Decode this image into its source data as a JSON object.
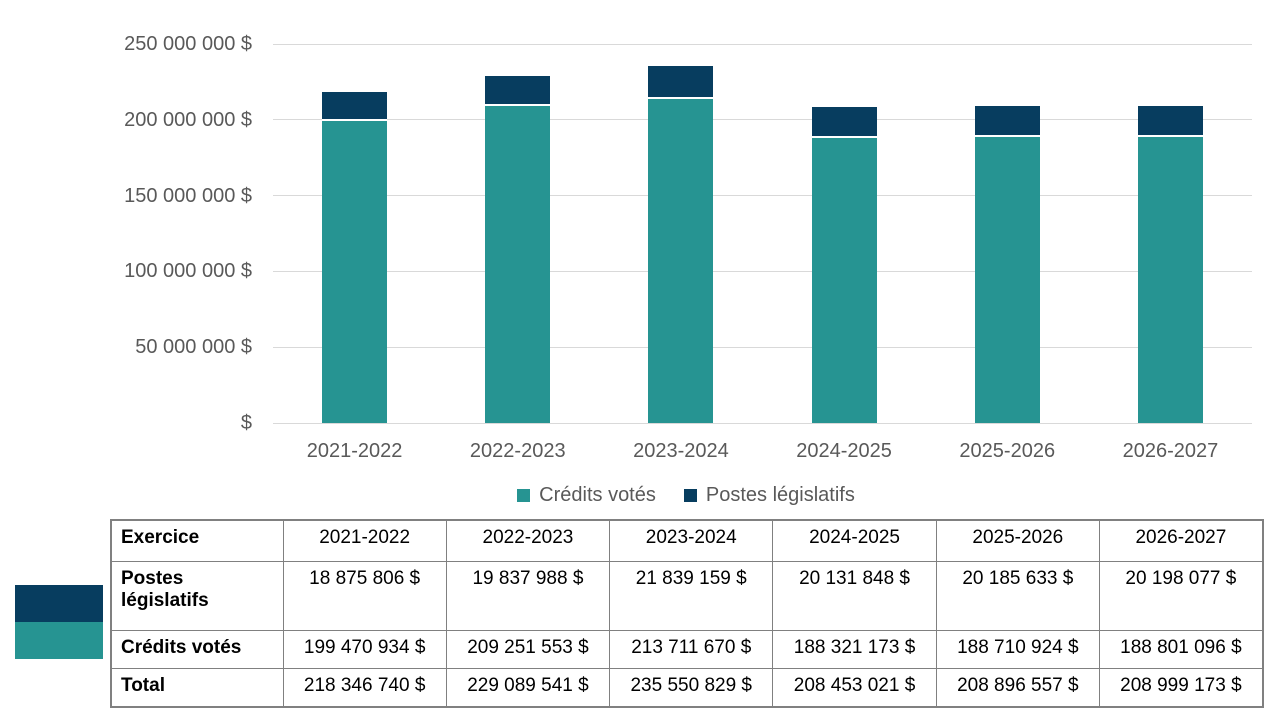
{
  "colors": {
    "credits_votes": "#269492",
    "postes_legislatifs": "#073D5F",
    "gridline": "#d9d9d9",
    "axis_text": "#595959",
    "table_border": "#808080",
    "separator": "#ffffff"
  },
  "chart_data": {
    "type": "bar",
    "stacked": true,
    "title": "",
    "xlabel": "",
    "ylabel": "",
    "grid": true,
    "legend_position": "bottom",
    "ylim": [
      0,
      250000000
    ],
    "categories": [
      "2021-2022",
      "2022-2023",
      "2023-2024",
      "2024-2025",
      "2025-2026",
      "2026-2027"
    ],
    "series": [
      {
        "name": "Crédits votés",
        "color": "#269492",
        "values": [
          199470934,
          209251553,
          213711670,
          188321173,
          188710924,
          188801096
        ]
      },
      {
        "name": "Postes législatifs",
        "color": "#073D5F",
        "values": [
          18875806,
          19837988,
          21839159,
          20131848,
          20185633,
          20198077
        ]
      }
    ],
    "totals": [
      218346740,
      229089541,
      235550829,
      208453021,
      208896557,
      208999173
    ],
    "y_ticks": [
      {
        "value": 250000000,
        "label": "250 000 000 $"
      },
      {
        "value": 200000000,
        "label": "200 000 000 $"
      },
      {
        "value": 150000000,
        "label": "150 000 000 $"
      },
      {
        "value": 100000000,
        "label": "100 000 000 $"
      },
      {
        "value": 50000000,
        "label": "50 000 000 $"
      },
      {
        "value": 0,
        "label": "$"
      }
    ]
  },
  "legend": {
    "items": [
      {
        "label": "Crédits votés",
        "color": "#269492"
      },
      {
        "label": "Postes législatifs",
        "color": "#073D5F"
      }
    ]
  },
  "row_color_key": [
    {
      "name": "postes-legislatifs",
      "color": "#073D5F"
    },
    {
      "name": "credits-votes",
      "color": "#269492"
    }
  ],
  "table": {
    "header": [
      "Exercice",
      "2021-2022",
      "2022-2023",
      "2023-2024",
      "2024-2025",
      "2025-2026",
      "2026-2027"
    ],
    "rows": [
      {
        "label": "Postes\nlégislatifs",
        "values": [
          "18 875 806 $",
          "19 837 988 $",
          "21 839 159 $",
          "20 131 848 $",
          "20 185 633 $",
          "20 198 077 $"
        ]
      },
      {
        "label": "Crédits votés",
        "values": [
          "199 470 934 $",
          "209 251 553 $",
          "213 711 670 $",
          "188 321 173 $",
          "188 710 924 $",
          "188 801 096 $"
        ]
      },
      {
        "label": "Total",
        "values": [
          "218 346 740 $",
          "229 089 541 $",
          "235 550 829 $",
          "208 453 021 $",
          "208 896 557 $",
          "208 999 173 $"
        ]
      }
    ]
  }
}
